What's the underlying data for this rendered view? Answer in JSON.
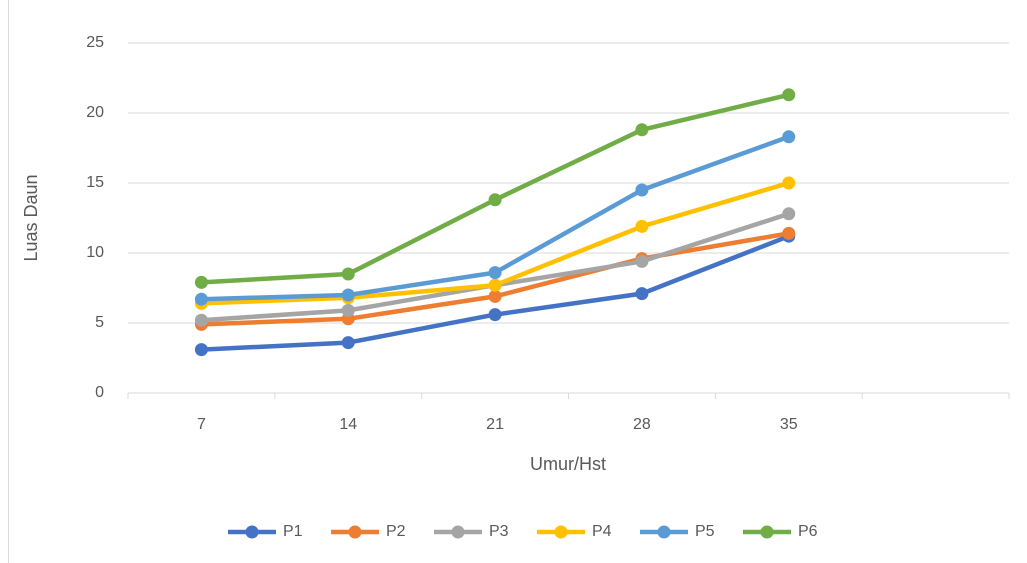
{
  "chart_data": {
    "type": "line",
    "x_label": "Umur/Hst",
    "y_label": "Luas Daun",
    "categories": [
      "7",
      "14",
      "21",
      "28",
      "35",
      null
    ],
    "series": [
      {
        "name": "P1",
        "color": "#4472c4",
        "values": [
          3.1,
          3.6,
          5.6,
          7.1,
          11.2,
          null
        ]
      },
      {
        "name": "P2",
        "color": "#ed7d31",
        "values": [
          4.9,
          5.3,
          6.9,
          9.6,
          11.4,
          null
        ]
      },
      {
        "name": "P3",
        "color": "#a5a5a5",
        "values": [
          5.2,
          5.9,
          7.7,
          9.4,
          12.8,
          null
        ]
      },
      {
        "name": "P4",
        "color": "#ffc000",
        "values": [
          6.4,
          6.8,
          7.7,
          11.9,
          15.0,
          null
        ]
      },
      {
        "name": "P5",
        "color": "#5b9bd5",
        "values": [
          6.7,
          7.0,
          8.6,
          14.5,
          18.3,
          null
        ]
      },
      {
        "name": "P6",
        "color": "#70ad47",
        "values": [
          7.9,
          8.5,
          13.8,
          18.8,
          21.3,
          null
        ]
      }
    ],
    "ylim": [
      0,
      25
    ],
    "yticks": [
      0,
      5,
      10,
      15,
      20,
      25
    ],
    "grid": true,
    "legend": "bottom"
  }
}
